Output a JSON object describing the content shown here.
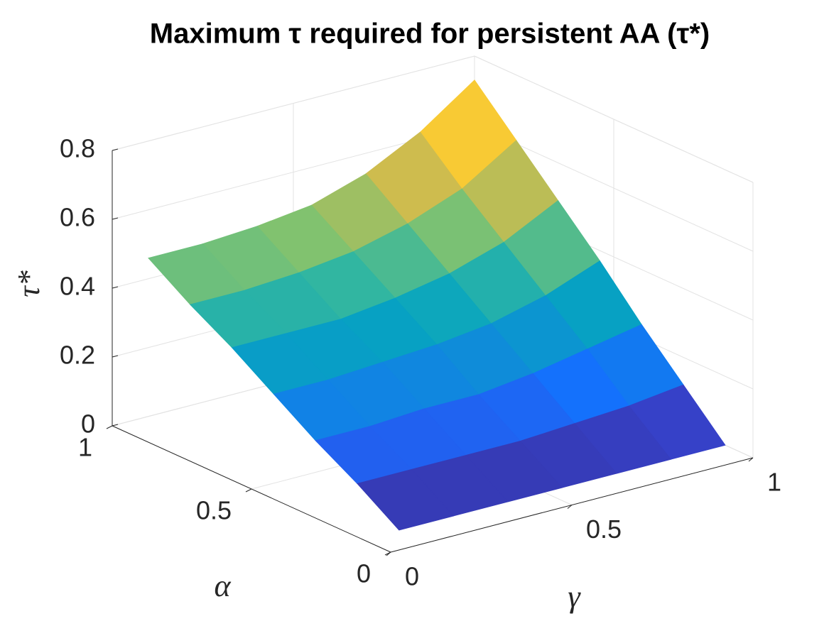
{
  "chart_data": {
    "type": "surface",
    "title": "Maximum τ required for persistent AA (τ*)",
    "xlabel": "γ",
    "ylabel": "α",
    "zlabel": "τ*",
    "x": [
      0.1,
      0.25,
      0.4,
      0.55,
      0.7,
      0.85,
      1.0
    ],
    "y": [
      0.1,
      0.25,
      0.4,
      0.55,
      0.7,
      0.85,
      1.0
    ],
    "z": [
      [
        0,
        0,
        0,
        0,
        0,
        0,
        0
      ],
      [
        0.08,
        0.08,
        0.08,
        0.08,
        0.09,
        0.1,
        0.12
      ],
      [
        0.15,
        0.15,
        0.16,
        0.16,
        0.18,
        0.21,
        0.24
      ],
      [
        0.23,
        0.23,
        0.24,
        0.25,
        0.27,
        0.31,
        0.37
      ],
      [
        0.31,
        0.31,
        0.31,
        0.33,
        0.36,
        0.41,
        0.49
      ],
      [
        0.38,
        0.38,
        0.39,
        0.41,
        0.45,
        0.51,
        0.61
      ],
      [
        0.46,
        0.46,
        0.47,
        0.49,
        0.54,
        0.62,
        0.73
      ]
    ],
    "xlim": [
      0,
      1
    ],
    "ylim": [
      0,
      1
    ],
    "zlim": [
      0,
      0.8
    ],
    "xticks": [
      0,
      0.5,
      1
    ],
    "yticks": [
      0,
      0.5,
      1
    ],
    "zticks": [
      0,
      0.2,
      0.4,
      0.6,
      0.8
    ],
    "colormap": "parula",
    "grid": true
  }
}
